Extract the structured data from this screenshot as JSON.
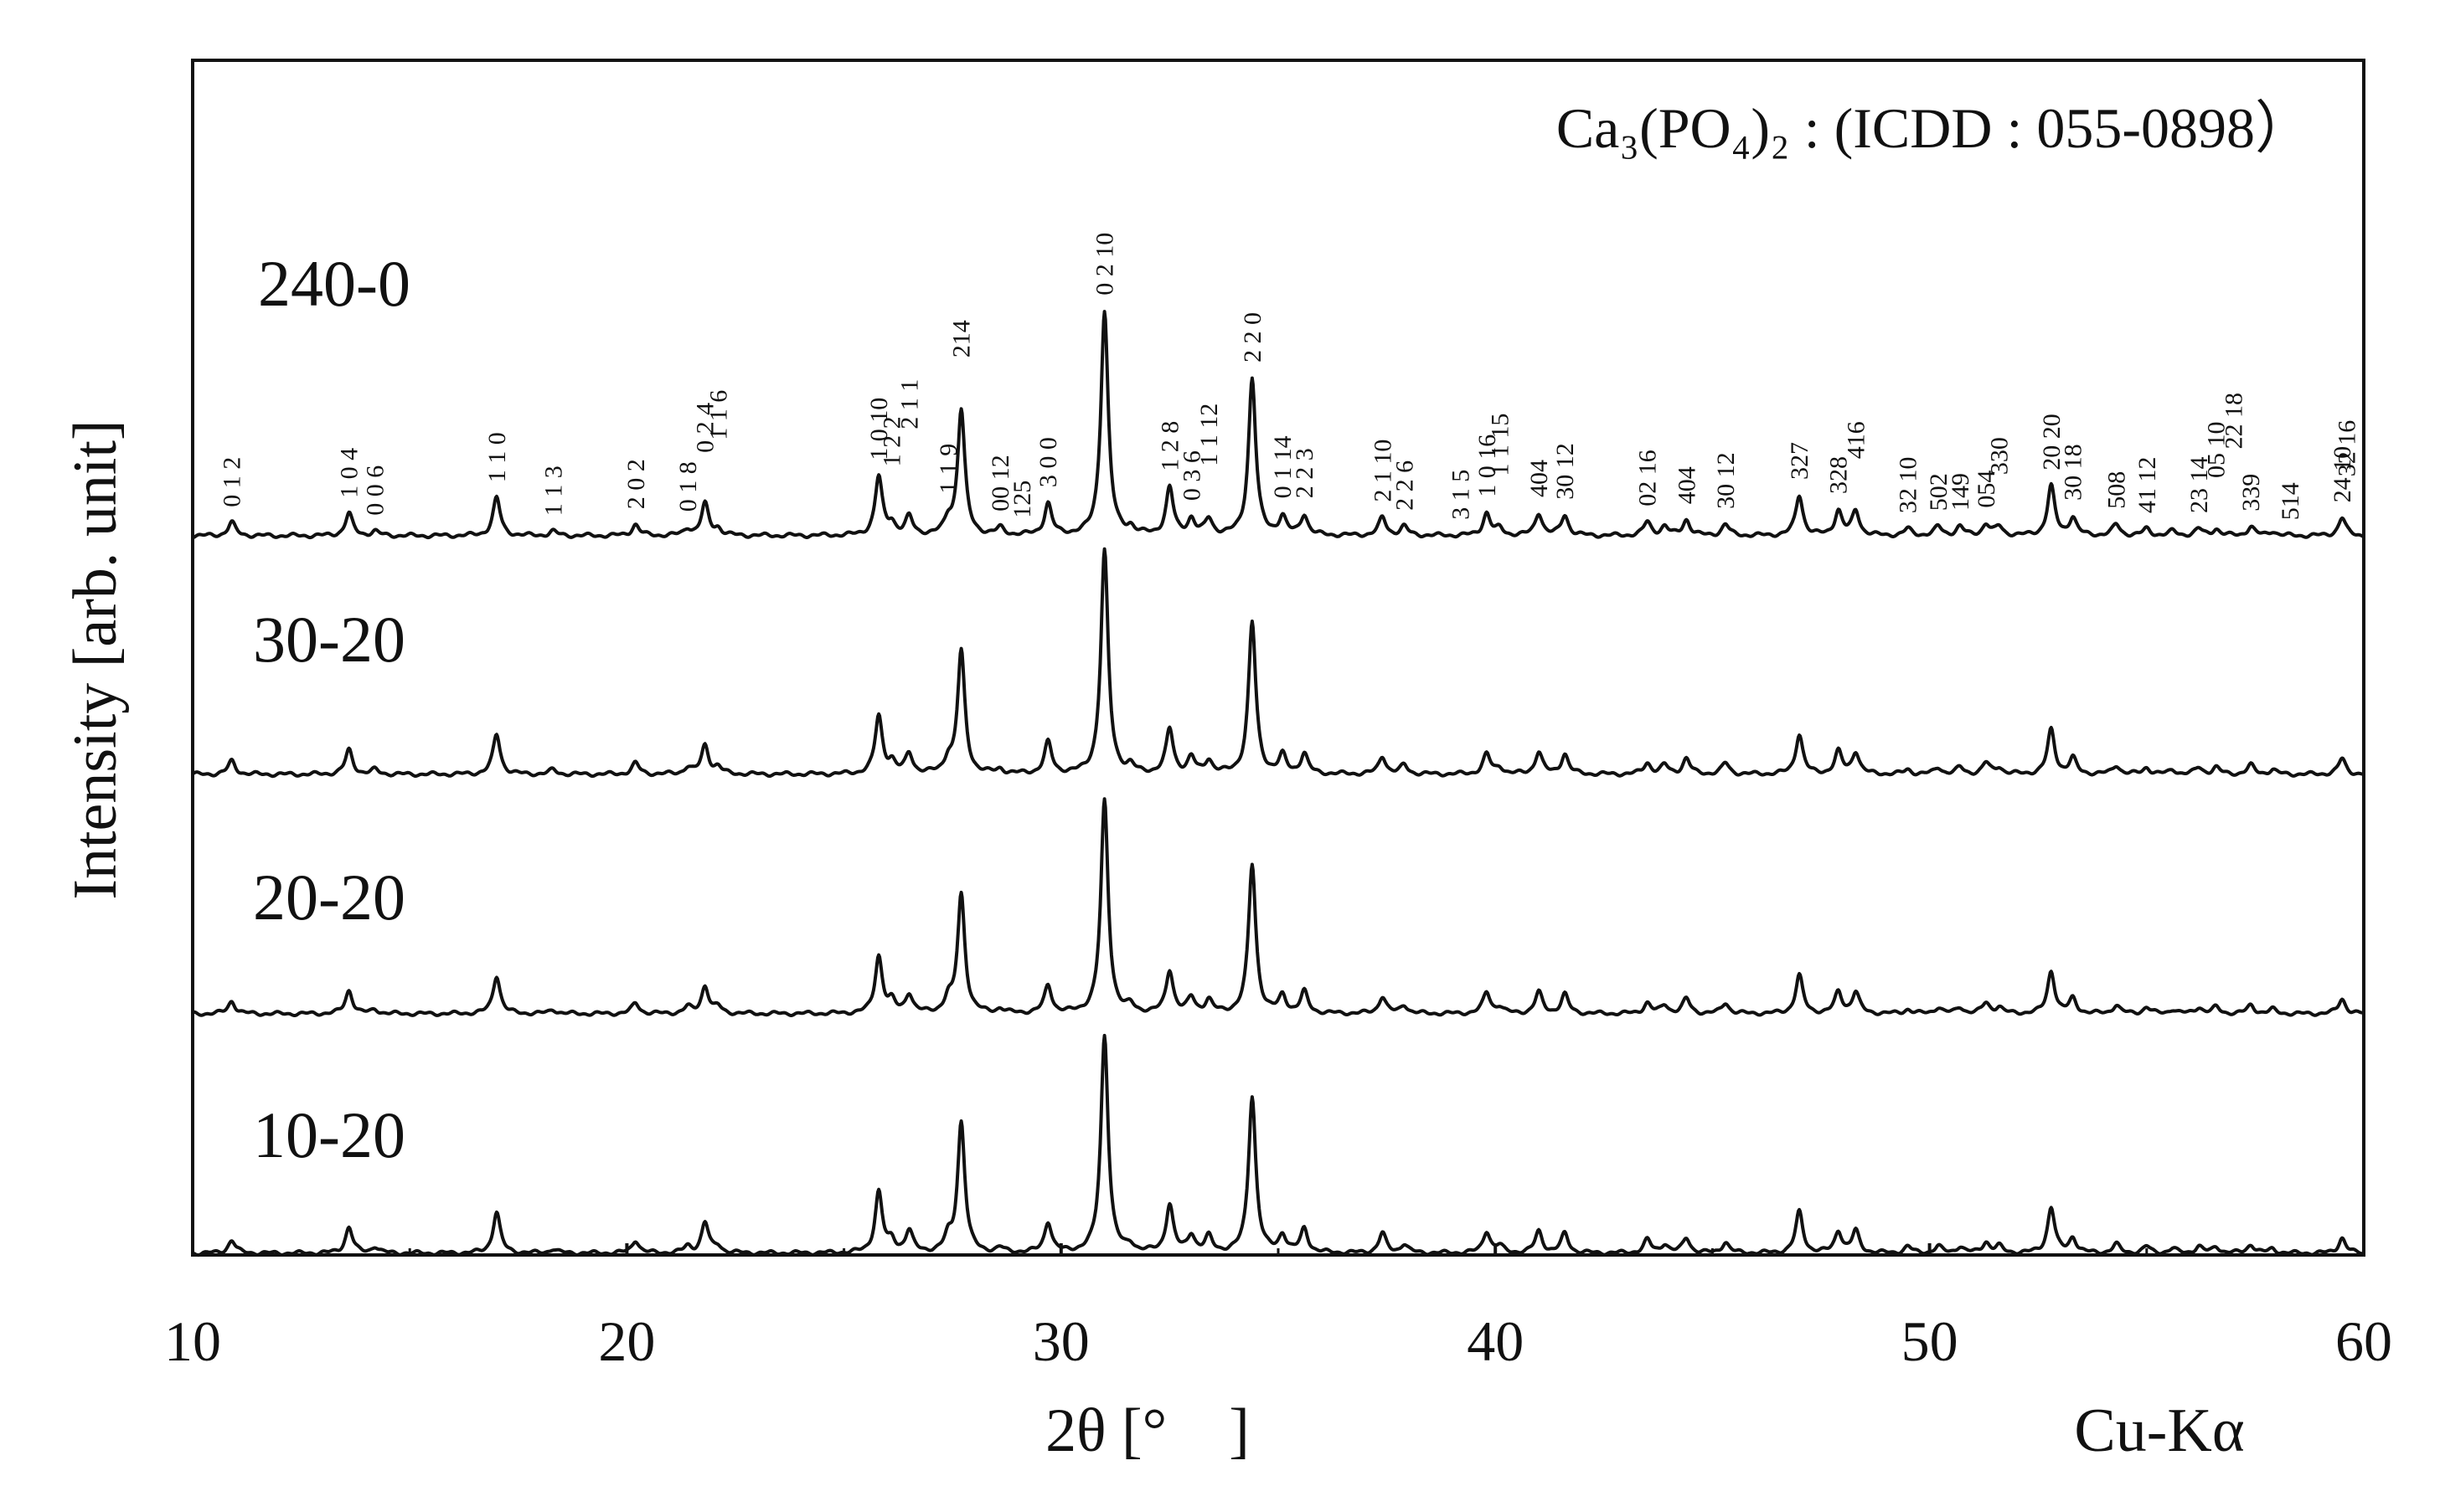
{
  "chart_data": {
    "type": "line",
    "title": "",
    "annotation": "Ca₃(PO₄)₂ : (ICDD : 055-0898）",
    "xlabel": "2θ [°　]",
    "ylabel": "Intensity [arb. unit]",
    "radiation_label": "Cu-Kα",
    "xlim": [
      10,
      60
    ],
    "x_ticks": [
      "10",
      "20",
      "30",
      "40",
      "50",
      "60"
    ],
    "grid": false,
    "legend": "none",
    "peak_width_deg": 0.1,
    "series": [
      {
        "name": "240-0",
        "peaks": [
          [
            10.9,
            0.06
          ],
          [
            13.6,
            0.1
          ],
          [
            14.2,
            0.02
          ],
          [
            17.0,
            0.17
          ],
          [
            18.3,
            0.02
          ],
          [
            20.2,
            0.05
          ],
          [
            21.4,
            0.03
          ],
          [
            21.8,
            0.14
          ],
          [
            22.1,
            0.03
          ],
          [
            25.8,
            0.26
          ],
          [
            26.1,
            0.05
          ],
          [
            26.5,
            0.08
          ],
          [
            27.4,
            0.06
          ],
          [
            27.7,
            0.56
          ],
          [
            28.6,
            0.03
          ],
          [
            29.7,
            0.14
          ],
          [
            31.0,
            1.0
          ],
          [
            31.6,
            0.03
          ],
          [
            32.5,
            0.21
          ],
          [
            33.0,
            0.07
          ],
          [
            33.4,
            0.07
          ],
          [
            34.4,
            0.7
          ],
          [
            35.1,
            0.08
          ],
          [
            35.6,
            0.09
          ],
          [
            37.4,
            0.08
          ],
          [
            37.9,
            0.04
          ],
          [
            39.8,
            0.1
          ],
          [
            40.1,
            0.03
          ],
          [
            41.0,
            0.1
          ],
          [
            41.6,
            0.09
          ],
          [
            43.5,
            0.06
          ],
          [
            43.9,
            0.04
          ],
          [
            44.4,
            0.07
          ],
          [
            45.3,
            0.05
          ],
          [
            47.0,
            0.18
          ],
          [
            47.9,
            0.11
          ],
          [
            48.3,
            0.11
          ],
          [
            49.5,
            0.03
          ],
          [
            50.2,
            0.04
          ],
          [
            50.7,
            0.04
          ],
          [
            51.3,
            0.05
          ],
          [
            51.6,
            0.04
          ],
          [
            52.8,
            0.22
          ],
          [
            53.3,
            0.08
          ],
          [
            54.3,
            0.05
          ],
          [
            55.0,
            0.03
          ],
          [
            55.6,
            0.02
          ],
          [
            56.2,
            0.03
          ],
          [
            56.6,
            0.03
          ],
          [
            57.4,
            0.04
          ],
          [
            57.9,
            0.02
          ],
          [
            59.5,
            0.08
          ]
        ]
      },
      {
        "name": "30-20",
        "peaks": [
          [
            10.9,
            0.06
          ],
          [
            13.6,
            0.11
          ],
          [
            14.2,
            0.02
          ],
          [
            17.0,
            0.18
          ],
          [
            18.3,
            0.02
          ],
          [
            20.2,
            0.05
          ],
          [
            21.4,
            0.03
          ],
          [
            21.8,
            0.13
          ],
          [
            22.1,
            0.03
          ],
          [
            25.8,
            0.26
          ],
          [
            26.1,
            0.05
          ],
          [
            26.5,
            0.09
          ],
          [
            27.4,
            0.06
          ],
          [
            27.7,
            0.55
          ],
          [
            28.6,
            0.02
          ],
          [
            29.7,
            0.14
          ],
          [
            31.0,
            1.0
          ],
          [
            31.6,
            0.03
          ],
          [
            32.5,
            0.2
          ],
          [
            33.0,
            0.07
          ],
          [
            33.4,
            0.06
          ],
          [
            34.4,
            0.68
          ],
          [
            35.1,
            0.08
          ],
          [
            35.6,
            0.09
          ],
          [
            37.4,
            0.08
          ],
          [
            37.9,
            0.04
          ],
          [
            39.8,
            0.09
          ],
          [
            40.1,
            0.03
          ],
          [
            41.0,
            0.1
          ],
          [
            41.6,
            0.09
          ],
          [
            43.5,
            0.05
          ],
          [
            43.9,
            0.04
          ],
          [
            44.4,
            0.07
          ],
          [
            45.3,
            0.05
          ],
          [
            47.0,
            0.18
          ],
          [
            47.9,
            0.1
          ],
          [
            48.3,
            0.1
          ],
          [
            49.5,
            0.02
          ],
          [
            50.2,
            0.03
          ],
          [
            50.7,
            0.03
          ],
          [
            51.3,
            0.05
          ],
          [
            51.6,
            0.03
          ],
          [
            52.8,
            0.2
          ],
          [
            53.3,
            0.07
          ],
          [
            54.3,
            0.04
          ],
          [
            55.0,
            0.03
          ],
          [
            55.6,
            0.02
          ],
          [
            56.2,
            0.03
          ],
          [
            56.6,
            0.03
          ],
          [
            57.4,
            0.04
          ],
          [
            57.9,
            0.02
          ],
          [
            59.5,
            0.07
          ]
        ]
      },
      {
        "name": "20-20",
        "peaks": [
          [
            10.9,
            0.06
          ],
          [
            13.6,
            0.11
          ],
          [
            14.2,
            0.02
          ],
          [
            17.0,
            0.18
          ],
          [
            18.3,
            0.02
          ],
          [
            20.2,
            0.05
          ],
          [
            21.4,
            0.03
          ],
          [
            21.8,
            0.13
          ],
          [
            22.1,
            0.03
          ],
          [
            25.8,
            0.27
          ],
          [
            26.1,
            0.05
          ],
          [
            26.5,
            0.09
          ],
          [
            27.4,
            0.06
          ],
          [
            27.7,
            0.56
          ],
          [
            28.6,
            0.02
          ],
          [
            29.7,
            0.13
          ],
          [
            31.0,
            1.0
          ],
          [
            31.6,
            0.03
          ],
          [
            32.5,
            0.2
          ],
          [
            33.0,
            0.07
          ],
          [
            33.4,
            0.06
          ],
          [
            34.4,
            0.7
          ],
          [
            35.1,
            0.08
          ],
          [
            35.6,
            0.1
          ],
          [
            37.4,
            0.08
          ],
          [
            37.9,
            0.04
          ],
          [
            39.8,
            0.1
          ],
          [
            40.1,
            0.03
          ],
          [
            41.0,
            0.1
          ],
          [
            41.6,
            0.09
          ],
          [
            43.5,
            0.05
          ],
          [
            43.9,
            0.04
          ],
          [
            44.4,
            0.07
          ],
          [
            45.3,
            0.05
          ],
          [
            47.0,
            0.18
          ],
          [
            47.9,
            0.1
          ],
          [
            48.3,
            0.1
          ],
          [
            49.5,
            0.02
          ],
          [
            50.2,
            0.03
          ],
          [
            50.7,
            0.03
          ],
          [
            51.3,
            0.05
          ],
          [
            51.6,
            0.03
          ],
          [
            52.8,
            0.2
          ],
          [
            53.3,
            0.07
          ],
          [
            54.3,
            0.04
          ],
          [
            55.0,
            0.03
          ],
          [
            55.6,
            0.02
          ],
          [
            56.2,
            0.03
          ],
          [
            56.6,
            0.03
          ],
          [
            57.4,
            0.04
          ],
          [
            57.9,
            0.02
          ],
          [
            59.5,
            0.07
          ]
        ]
      },
      {
        "name": "10-20",
        "peaks": [
          [
            10.9,
            0.06
          ],
          [
            13.6,
            0.12
          ],
          [
            14.2,
            0.03
          ],
          [
            17.0,
            0.19
          ],
          [
            18.3,
            0.02
          ],
          [
            20.2,
            0.06
          ],
          [
            21.4,
            0.03
          ],
          [
            21.8,
            0.14
          ],
          [
            22.1,
            0.03
          ],
          [
            25.8,
            0.28
          ],
          [
            26.1,
            0.05
          ],
          [
            26.5,
            0.1
          ],
          [
            27.4,
            0.06
          ],
          [
            27.7,
            0.6
          ],
          [
            28.6,
            0.02
          ],
          [
            29.7,
            0.14
          ],
          [
            31.0,
            1.0
          ],
          [
            31.6,
            0.03
          ],
          [
            32.5,
            0.22
          ],
          [
            33.0,
            0.08
          ],
          [
            33.4,
            0.07
          ],
          [
            34.4,
            0.72
          ],
          [
            35.1,
            0.08
          ],
          [
            35.6,
            0.11
          ],
          [
            37.4,
            0.09
          ],
          [
            37.9,
            0.04
          ],
          [
            39.8,
            0.1
          ],
          [
            40.1,
            0.03
          ],
          [
            41.0,
            0.1
          ],
          [
            41.6,
            0.09
          ],
          [
            43.5,
            0.06
          ],
          [
            43.9,
            0.04
          ],
          [
            44.4,
            0.07
          ],
          [
            45.3,
            0.05
          ],
          [
            47.0,
            0.19
          ],
          [
            47.9,
            0.1
          ],
          [
            48.3,
            0.1
          ],
          [
            49.5,
            0.03
          ],
          [
            50.2,
            0.03
          ],
          [
            50.7,
            0.03
          ],
          [
            51.3,
            0.05
          ],
          [
            51.6,
            0.03
          ],
          [
            52.8,
            0.21
          ],
          [
            53.3,
            0.07
          ],
          [
            54.3,
            0.04
          ],
          [
            55.0,
            0.03
          ],
          [
            55.6,
            0.02
          ],
          [
            56.2,
            0.03
          ],
          [
            56.6,
            0.03
          ],
          [
            57.4,
            0.04
          ],
          [
            57.9,
            0.02
          ],
          [
            59.5,
            0.07
          ]
        ]
      }
    ],
    "hkl_labels": [
      {
        "x": 10.9,
        "text": "0 1 2"
      },
      {
        "x": 13.6,
        "text": "1 0 4"
      },
      {
        "x": 14.2,
        "text": "0 0 6"
      },
      {
        "x": 17.0,
        "text": "1 1 0"
      },
      {
        "x": 18.3,
        "text": "1 1 3"
      },
      {
        "x": 20.2,
        "text": "2 0 2"
      },
      {
        "x": 21.4,
        "text": "0 1 8"
      },
      {
        "x": 21.8,
        "text": "0 2 4"
      },
      {
        "x": 22.1,
        "text": "1 1 6"
      },
      {
        "x": 25.8,
        "text": "1 0 10"
      },
      {
        "x": 26.1,
        "text": "1 2 2"
      },
      {
        "x": 26.5,
        "text": "2 1 1"
      },
      {
        "x": 27.4,
        "text": "1 1 9"
      },
      {
        "x": 27.7,
        "text": "214"
      },
      {
        "x": 28.6,
        "text": "00 12"
      },
      {
        "x": 29.1,
        "text": "125"
      },
      {
        "x": 29.7,
        "text": "3 0 0"
      },
      {
        "x": 31.0,
        "text": "0 2 10"
      },
      {
        "x": 32.5,
        "text": "1 2 8"
      },
      {
        "x": 33.0,
        "text": "0 3 6"
      },
      {
        "x": 33.4,
        "text": "1 1 12"
      },
      {
        "x": 34.4,
        "text": "2 2 0"
      },
      {
        "x": 35.1,
        "text": "0 1 14"
      },
      {
        "x": 35.6,
        "text": "2 2 3"
      },
      {
        "x": 37.4,
        "text": "2 1 10"
      },
      {
        "x": 37.9,
        "text": "2 2 6"
      },
      {
        "x": 39.2,
        "text": "3 1 5"
      },
      {
        "x": 39.8,
        "text": "1 0 16"
      },
      {
        "x": 40.1,
        "text": "1 1 15"
      },
      {
        "x": 41.0,
        "text": "404"
      },
      {
        "x": 41.6,
        "text": "30 12"
      },
      {
        "x": 43.5,
        "text": "02 16"
      },
      {
        "x": 44.4,
        "text": "404"
      },
      {
        "x": 45.3,
        "text": "30 12"
      },
      {
        "x": 47.0,
        "text": "327"
      },
      {
        "x": 47.9,
        "text": "328"
      },
      {
        "x": 48.3,
        "text": "416"
      },
      {
        "x": 49.5,
        "text": "32 10"
      },
      {
        "x": 50.2,
        "text": "502"
      },
      {
        "x": 50.7,
        "text": "149"
      },
      {
        "x": 51.3,
        "text": "054"
      },
      {
        "x": 51.6,
        "text": "330"
      },
      {
        "x": 52.8,
        "text": "20 20"
      },
      {
        "x": 53.3,
        "text": "30 18"
      },
      {
        "x": 54.3,
        "text": "508"
      },
      {
        "x": 55.0,
        "text": "41 12"
      },
      {
        "x": 56.2,
        "text": "23 14"
      },
      {
        "x": 56.6,
        "text": "05 10"
      },
      {
        "x": 57.0,
        "text": "22 18"
      },
      {
        "x": 57.4,
        "text": "339"
      },
      {
        "x": 58.3,
        "text": "514"
      },
      {
        "x": 59.5,
        "text": "24 10"
      },
      {
        "x": 59.6,
        "text": "32 16"
      }
    ]
  }
}
